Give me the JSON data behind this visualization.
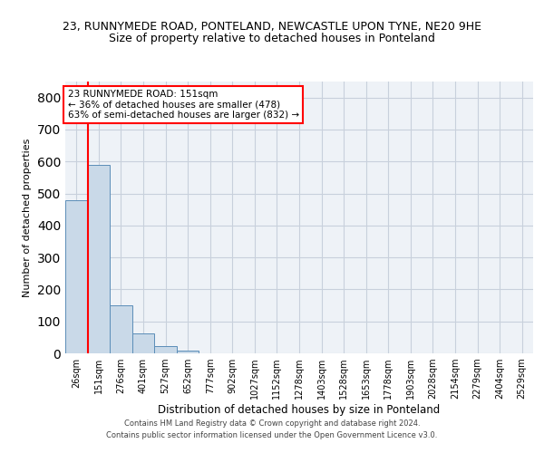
{
  "title1": "23, RUNNYMEDE ROAD, PONTELAND, NEWCASTLE UPON TYNE, NE20 9HE",
  "title2": "Size of property relative to detached houses in Ponteland",
  "xlabel": "Distribution of detached houses by size in Ponteland",
  "ylabel": "Number of detached properties",
  "bar_labels": [
    "26sqm",
    "151sqm",
    "276sqm",
    "401sqm",
    "527sqm",
    "652sqm",
    "777sqm",
    "902sqm",
    "1027sqm",
    "1152sqm",
    "1278sqm",
    "1403sqm",
    "1528sqm",
    "1653sqm",
    "1778sqm",
    "1903sqm",
    "2028sqm",
    "2154sqm",
    "2279sqm",
    "2404sqm",
    "2529sqm"
  ],
  "bar_values": [
    480,
    590,
    150,
    62,
    22,
    8,
    1,
    0,
    0,
    0,
    0,
    0,
    0,
    0,
    0,
    0,
    0,
    0,
    0,
    0,
    0
  ],
  "bar_color": "#c9d9e8",
  "bar_edge_color": "#5b8db8",
  "redline_index": 1,
  "annotation_line1": "23 RUNNYMEDE ROAD: 151sqm",
  "annotation_line2": "← 36% of detached houses are smaller (478)",
  "annotation_line3": "63% of semi-detached houses are larger (832) →",
  "annotation_box_color": "white",
  "annotation_box_edge_color": "red",
  "redline_color": "red",
  "ylim": [
    0,
    850
  ],
  "yticks": [
    0,
    100,
    200,
    300,
    400,
    500,
    600,
    700,
    800
  ],
  "footer1": "Contains HM Land Registry data © Crown copyright and database right 2024.",
  "footer2": "Contains public sector information licensed under the Open Government Licence v3.0.",
  "grid_color": "#c8d0dc",
  "bg_color": "#eef2f7",
  "title1_fontsize": 9,
  "title2_fontsize": 9,
  "ylabel_fontsize": 8,
  "xlabel_fontsize": 8.5,
  "tick_fontsize": 7,
  "annotation_fontsize": 7.5,
  "footer_fontsize": 6
}
